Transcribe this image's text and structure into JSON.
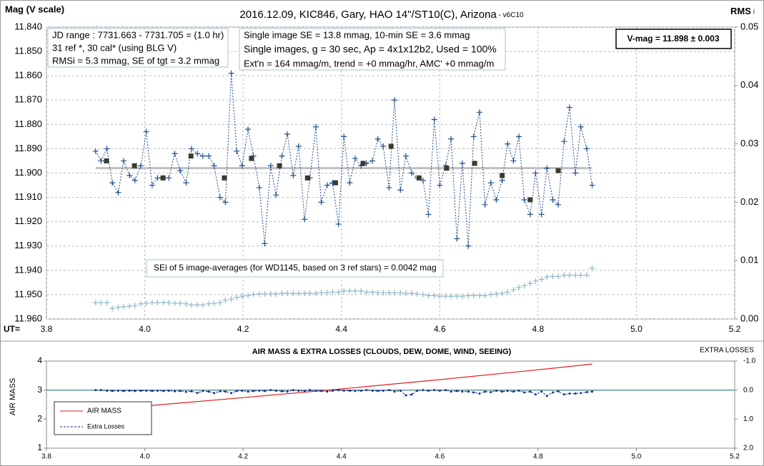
{
  "chart_data": [
    {
      "type": "line",
      "title": "2016.12.09,  KIC846, Gary, HAO 14\"/ST10(C), Arizona",
      "subtitle": " - v6C10",
      "ylabel": "Mag (V scale)",
      "y2label": "RMS",
      "y2label_suffix": "i",
      "xlabel": "UT=",
      "info_boxes": [
        [
          "JD range :  7731.663 - 7731.705  = (1.0 hr)",
          "31 ref *, 30 cal* (using BLG V)",
          "RMSi = 5.3 mmag, SE of tgt = 3.2 mmag"
        ],
        [
          "Single image SE = 13.8 mmag, 10-min SE = 3.6 mmag",
          "Single images, g = 30 sec, Ap = 4x1x12b2, Used = 100%",
          "Ext'n = 164 mmag/m, trend = +0 mmag/hr, AMC' +0 mmag/m"
        ]
      ],
      "result_box": "V-mag = 11.898 ± 0.003",
      "annotation": "SEi of 5 image-averages (for WD1145, based on 3 ref stars) = 0.0042 mag",
      "xlim": [
        3.8,
        5.2
      ],
      "xticks": [
        3.8,
        {
          "value": 4,
          "label": "4.0"
        },
        4.2,
        4.4,
        4.6,
        4.8,
        {
          "value": 5,
          "label": "5.0"
        },
        5.2
      ],
      "ylim": [
        11.84,
        11.96
      ],
      "y_inverted": true,
      "yticks": [
        {
          "value": 11.84,
          "label": "11.840"
        },
        {
          "value": 11.85,
          "label": "11.850"
        },
        {
          "value": 11.86,
          "label": "11.860"
        },
        {
          "value": 11.87,
          "label": "11.870"
        },
        {
          "value": 11.88,
          "label": "11.880"
        },
        {
          "value": 11.89,
          "label": "11.890"
        },
        {
          "value": 11.9,
          "label": "11.900"
        },
        {
          "value": 11.91,
          "label": "11.910"
        },
        {
          "value": 11.92,
          "label": "11.920"
        },
        {
          "value": 11.93,
          "label": "11.930"
        },
        {
          "value": 11.94,
          "label": "11.940"
        },
        {
          "value": 11.95,
          "label": "11.950"
        },
        {
          "value": 11.96,
          "label": "11.960"
        }
      ],
      "y2lim": [
        0,
        0.05
      ],
      "y2ticks": [
        {
          "value": 0,
          "label": "0.00"
        },
        {
          "value": 0.01,
          "label": "0.01"
        },
        {
          "value": 0.02,
          "label": "0.02"
        },
        {
          "value": 0.03,
          "label": "0.03"
        },
        {
          "value": 0.04,
          "label": "0.04"
        },
        {
          "value": 0.05,
          "label": "0.05"
        }
      ],
      "grid": true,
      "reference_line": {
        "value": 11.898,
        "color": "#bfbfbf",
        "x": [
          3.9,
          4.91
        ]
      },
      "series": [
        {
          "color": "#1f4e8c",
          "marker": "plus",
          "line": "dotted",
          "x": [
            3.9,
            3.911,
            3.923,
            3.934,
            3.946,
            3.957,
            3.969,
            3.98,
            3.992,
            4.003,
            4.015,
            4.026,
            4.038,
            4.049,
            4.061,
            4.072,
            4.084,
            4.095,
            4.107,
            4.118,
            4.13,
            4.141,
            4.153,
            4.164,
            4.176,
            4.187,
            4.198,
            4.21,
            4.221,
            4.233,
            4.244,
            4.256,
            4.267,
            4.279,
            4.29,
            4.302,
            4.313,
            4.325,
            4.336,
            4.348,
            4.359,
            4.371,
            4.382,
            4.394,
            4.405,
            4.417,
            4.428,
            4.44,
            4.451,
            4.463,
            4.474,
            4.485,
            4.497,
            4.508,
            4.52,
            4.531,
            4.543,
            4.554,
            4.566,
            4.577,
            4.589,
            4.6,
            4.612,
            4.623,
            4.635,
            4.646,
            4.658,
            4.669,
            4.681,
            4.692,
            4.704,
            4.715,
            4.727,
            4.738,
            4.75,
            4.761,
            4.772,
            4.784,
            4.795,
            4.807,
            4.818,
            4.83,
            4.841,
            4.853,
            4.864,
            4.876,
            4.887,
            4.899,
            4.91
          ],
          "values": [
            11.891,
            11.895,
            11.89,
            11.904,
            11.908,
            11.895,
            11.901,
            11.903,
            11.897,
            11.883,
            11.905,
            11.902,
            11.902,
            11.902,
            11.892,
            11.899,
            11.904,
            11.89,
            11.892,
            11.893,
            11.893,
            11.897,
            11.91,
            11.912,
            11.859,
            11.891,
            11.897,
            11.882,
            11.893,
            11.906,
            11.929,
            11.897,
            11.909,
            11.893,
            11.884,
            11.901,
            11.889,
            11.919,
            11.902,
            11.881,
            11.912,
            11.905,
            11.904,
            11.921,
            11.885,
            11.904,
            11.894,
            11.897,
            11.896,
            11.895,
            11.886,
            11.889,
            11.906,
            11.87,
            11.907,
            11.893,
            11.9,
            11.902,
            11.903,
            11.917,
            11.878,
            11.905,
            11.897,
            11.886,
            11.927,
            11.896,
            11.93,
            11.885,
            11.875,
            11.913,
            11.904,
            11.911,
            11.903,
            11.888,
            11.895,
            11.885,
            11.911,
            11.917,
            11.9,
            11.917,
            11.898,
            11.911,
            11.913,
            11.887,
            11.873,
            11.9,
            11.881,
            11.89,
            11.905
          ]
        },
        {
          "color": "#3b3b2e",
          "marker": "square",
          "line": "none",
          "x": [
            3.922,
            3.979,
            4.037,
            4.094,
            4.162,
            4.217,
            4.274,
            4.331,
            4.388,
            4.444,
            4.501,
            4.558,
            4.614,
            4.671,
            4.727,
            4.784,
            4.841
          ],
          "values": [
            11.895,
            11.897,
            11.902,
            11.893,
            11.902,
            11.894,
            11.897,
            11.902,
            11.904,
            11.896,
            11.889,
            11.902,
            11.898,
            11.896,
            11.901,
            11.911,
            11.899
          ]
        },
        {
          "color": "#8fb8c8",
          "marker": "plus",
          "line": "none",
          "axis": "y2",
          "x": [
            3.9,
            3.911,
            3.923,
            3.934,
            3.946,
            3.957,
            3.969,
            3.98,
            3.992,
            4.003,
            4.015,
            4.026,
            4.038,
            4.049,
            4.061,
            4.072,
            4.084,
            4.095,
            4.107,
            4.118,
            4.13,
            4.141,
            4.153,
            4.164,
            4.176,
            4.187,
            4.198,
            4.21,
            4.221,
            4.233,
            4.244,
            4.256,
            4.267,
            4.279,
            4.29,
            4.302,
            4.313,
            4.325,
            4.336,
            4.348,
            4.359,
            4.371,
            4.382,
            4.394,
            4.405,
            4.417,
            4.428,
            4.44,
            4.451,
            4.463,
            4.474,
            4.485,
            4.497,
            4.508,
            4.52,
            4.531,
            4.543,
            4.554,
            4.566,
            4.577,
            4.589,
            4.6,
            4.612,
            4.623,
            4.635,
            4.646,
            4.658,
            4.669,
            4.681,
            4.692,
            4.704,
            4.715,
            4.727,
            4.738,
            4.75,
            4.761,
            4.772,
            4.784,
            4.795,
            4.807,
            4.818,
            4.83,
            4.841,
            4.853,
            4.864,
            4.876,
            4.887,
            4.899,
            4.91
          ],
          "values": [
            0.0028,
            0.0028,
            0.0028,
            0.0018,
            0.002,
            0.0021,
            0.0022,
            0.0023,
            0.0026,
            0.0027,
            0.0028,
            0.0028,
            0.0028,
            0.0028,
            0.0027,
            0.0027,
            0.0026,
            0.0024,
            0.0024,
            0.0024,
            0.0026,
            0.0027,
            0.0028,
            0.0032,
            0.0034,
            0.0037,
            0.0039,
            0.004,
            0.0042,
            0.0043,
            0.0043,
            0.0043,
            0.0043,
            0.0044,
            0.0044,
            0.0044,
            0.0044,
            0.0044,
            0.0044,
            0.0044,
            0.0045,
            0.0045,
            0.0046,
            0.0046,
            0.0048,
            0.0048,
            0.0048,
            0.0048,
            0.0046,
            0.0046,
            0.0045,
            0.0045,
            0.0045,
            0.0045,
            0.0045,
            0.0044,
            0.0044,
            0.0043,
            0.0042,
            0.004,
            0.004,
            0.0039,
            0.0039,
            0.0039,
            0.0039,
            0.0039,
            0.004,
            0.004,
            0.004,
            0.004,
            0.0042,
            0.0043,
            0.0044,
            0.0046,
            0.005,
            0.0054,
            0.0057,
            0.0061,
            0.0065,
            0.0068,
            0.0072,
            0.0073,
            0.0073,
            0.0075,
            0.0075,
            0.0075,
            0.0075,
            0.0075,
            0.0087
          ]
        }
      ]
    },
    {
      "type": "line",
      "title": "AIR MASS & EXTRA LOSSES (CLOUDS, DEW, DOME, WIND, SEEING)",
      "ylabel": "AIR MASS",
      "y2label": "EXTRA LOSSES",
      "xlim": [
        3.8,
        5.2
      ],
      "xticks": [
        3.8,
        {
          "value": 4,
          "label": "4.0"
        },
        4.2,
        4.4,
        4.6,
        4.8,
        {
          "value": 5,
          "label": "5.0"
        },
        5.2
      ],
      "ylim": [
        1,
        4
      ],
      "yticks": [
        1,
        2,
        3,
        4
      ],
      "y2lim": [
        -1,
        2
      ],
      "y2_inverted": true,
      "y2ticks": [
        {
          "value": -1,
          "label": "-1.0"
        },
        {
          "value": 0,
          "label": "0.0"
        },
        {
          "value": 1,
          "label": "1.0"
        },
        {
          "value": 2,
          "label": "2.0"
        }
      ],
      "grid": false,
      "reference_line": {
        "value": 3,
        "color": "#2e7d7d",
        "x": [
          3.8,
          5.2
        ]
      },
      "legend": "lower-left",
      "series": [
        {
          "name": "AIR MASS",
          "color": "#e02020",
          "marker": "none",
          "line": "solid",
          "x": [
            3.9,
            4.0,
            4.2,
            4.4,
            4.6,
            4.8,
            4.91
          ],
          "values": [
            2.3,
            2.45,
            2.74,
            3.04,
            3.36,
            3.7,
            3.9
          ]
        },
        {
          "name": "Extra Losses",
          "color": "#1a2a8c",
          "marker": "dot",
          "line": "dashed",
          "axis": "y2",
          "x": [
            3.9,
            3.911,
            3.923,
            3.934,
            3.946,
            3.957,
            3.969,
            3.98,
            3.992,
            4.003,
            4.015,
            4.026,
            4.038,
            4.049,
            4.061,
            4.072,
            4.084,
            4.095,
            4.107,
            4.118,
            4.13,
            4.141,
            4.153,
            4.164,
            4.176,
            4.187,
            4.198,
            4.21,
            4.221,
            4.233,
            4.244,
            4.256,
            4.267,
            4.279,
            4.29,
            4.302,
            4.313,
            4.325,
            4.336,
            4.348,
            4.359,
            4.371,
            4.382,
            4.394,
            4.405,
            4.417,
            4.428,
            4.44,
            4.451,
            4.463,
            4.474,
            4.485,
            4.497,
            4.508,
            4.52,
            4.531,
            4.543,
            4.554,
            4.566,
            4.577,
            4.589,
            4.6,
            4.612,
            4.623,
            4.635,
            4.646,
            4.658,
            4.669,
            4.681,
            4.692,
            4.704,
            4.715,
            4.727,
            4.738,
            4.75,
            4.761,
            4.772,
            4.784,
            4.795,
            4.807,
            4.818,
            4.83,
            4.841,
            4.853,
            4.864,
            4.876,
            4.887,
            4.899,
            4.91
          ],
          "values": [
            0.0,
            0.0,
            0.02,
            0.03,
            0.02,
            0.03,
            0.02,
            0.03,
            0.02,
            0.02,
            0.03,
            0.02,
            0.03,
            0.02,
            0.04,
            0.03,
            0.06,
            0.04,
            0.1,
            0.03,
            0.05,
            0.1,
            0.04,
            0.05,
            0.1,
            0.03,
            0.02,
            0.05,
            0.03,
            0.02,
            0.03,
            0.0,
            0.02,
            0.04,
            0.05,
            0.0,
            0.02,
            0.03,
            0.0,
            0.02,
            0.03,
            0.05,
            0.02,
            0.0,
            0.02,
            0.02,
            0.03,
            0.02,
            0.0,
            0.02,
            0.03,
            0.02,
            0.0,
            0.05,
            0.02,
            0.18,
            0.15,
            0.02,
            0.0,
            0.02,
            0.0,
            0.02,
            0.0,
            0.05,
            0.03,
            0.05,
            0.05,
            0.08,
            0.12,
            0.05,
            0.07,
            0.02,
            0.05,
            0.03,
            0.05,
            0.02,
            0.08,
            0.05,
            0.15,
            0.05,
            0.2,
            0.08,
            0.04,
            0.15,
            0.12,
            0.12,
            0.1,
            0.07,
            0.05
          ]
        }
      ]
    }
  ]
}
